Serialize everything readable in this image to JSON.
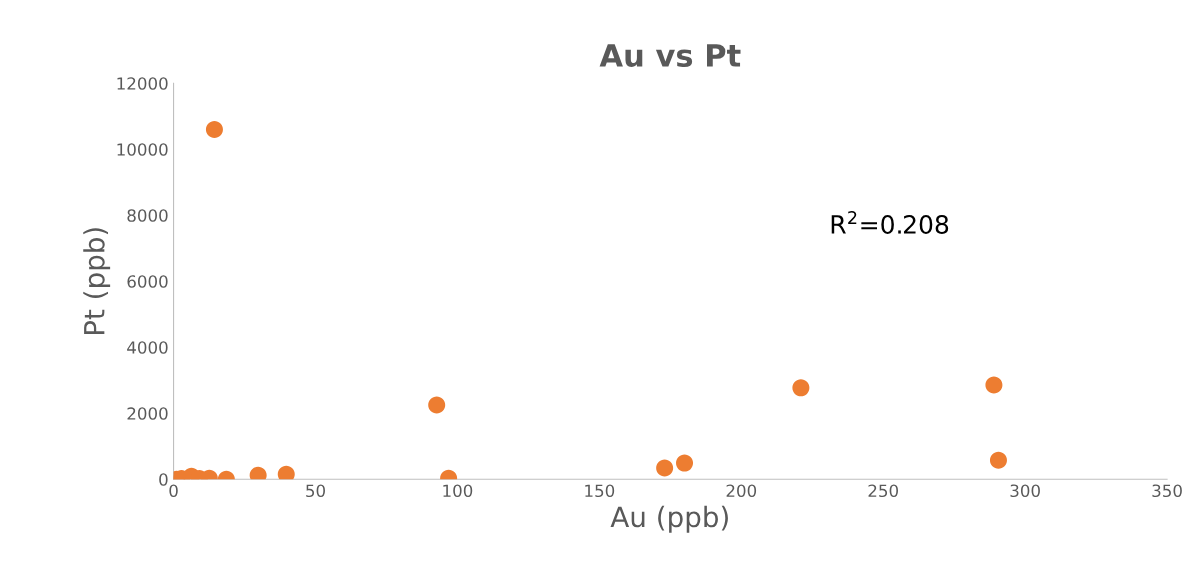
{
  "chart_data": {
    "type": "scatter",
    "title": "Au vs Pt",
    "xlabel": "Au (ppb)",
    "ylabel": "Pt (ppb)",
    "annotations": [
      "R$^{2}$=0.208"
    ],
    "x": [
      1.1,
      2.8,
      4.6,
      6.3,
      9.1,
      12.6,
      18.6,
      14.4,
      29.8,
      39.7,
      92.7,
      96.9,
      173,
      180,
      221,
      289,
      290.6
    ],
    "series": [
      {
        "color": "#ed7d31",
        "values": [
          0,
          20,
          null,
          90,
          20,
          30,
          0,
          10600,
          120,
          150,
          2250,
          30,
          340,
          490,
          2770,
          2860,
          580
        ]
      }
    ],
    "xlim": [
      0,
      350
    ],
    "xticks": [
      0,
      50,
      100,
      150,
      200,
      250,
      300,
      350
    ],
    "ylim": [
      0,
      12000
    ],
    "yticks": [
      0,
      2000,
      4000,
      6000,
      8000,
      10000,
      12000
    ],
    "marker": "circle",
    "grid": false,
    "legend": false
  }
}
